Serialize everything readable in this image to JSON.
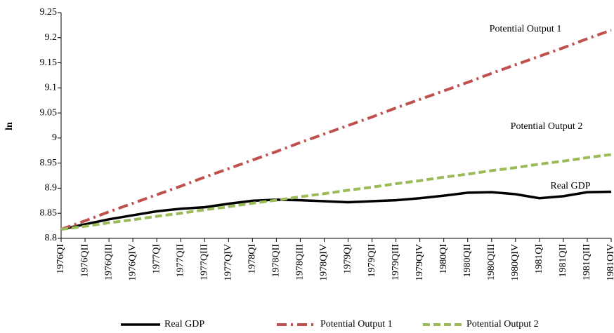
{
  "chart_data": {
    "type": "line",
    "y_label": "ln",
    "categories": [
      "1976QI",
      "1976QII",
      "1976QIII",
      "1976QIV",
      "1977QI",
      "1977QII",
      "1977QIII",
      "1977QIV",
      "1978QI",
      "1978QII",
      "1978QIII",
      "1978QIV",
      "1979QI",
      "1979QII",
      "1979QIII",
      "1979QIV",
      "1980QI",
      "1980QII",
      "1980QIII",
      "1980QIV",
      "1981QI",
      "1981QII",
      "1981QIII",
      "1981OIV"
    ],
    "series": [
      {
        "name": "Real GDP",
        "color": "#000000",
        "style": "solid",
        "values": [
          8.818,
          8.828,
          8.838,
          8.846,
          8.854,
          8.859,
          8.862,
          8.869,
          8.875,
          8.877,
          8.876,
          8.874,
          8.872,
          8.874,
          8.876,
          8.88,
          8.885,
          8.891,
          8.892,
          8.888,
          8.88,
          8.884,
          8.892,
          8.893
        ]
      },
      {
        "name": "Potential Output 1",
        "color": "#c0504d",
        "style": "dashdot",
        "values": [
          8.818,
          8.835,
          8.853,
          8.87,
          8.887,
          8.904,
          8.922,
          8.939,
          8.956,
          8.973,
          8.991,
          9.008,
          9.025,
          9.042,
          9.06,
          9.077,
          9.094,
          9.111,
          9.129,
          9.146,
          9.163,
          9.18,
          9.198,
          9.215
        ]
      },
      {
        "name": "Potential Output 2",
        "color": "#9bbb59",
        "style": "dashed",
        "values": [
          8.818,
          8.824,
          8.831,
          8.837,
          8.844,
          8.85,
          8.857,
          8.863,
          8.87,
          8.876,
          8.883,
          8.889,
          8.896,
          8.902,
          8.909,
          8.915,
          8.922,
          8.928,
          8.935,
          8.941,
          8.948,
          8.954,
          8.961,
          8.967
        ]
      }
    ],
    "annotations": [
      "Potential Output 1",
      "Potential Output 2",
      "Real GDP"
    ],
    "ylim": [
      8.8,
      9.25
    ],
    "yticks": [
      8.8,
      8.85,
      8.9,
      8.95,
      9,
      9.05,
      9.1,
      9.15,
      9.2,
      9.25
    ],
    "grid": false,
    "legend": "bottom"
  }
}
